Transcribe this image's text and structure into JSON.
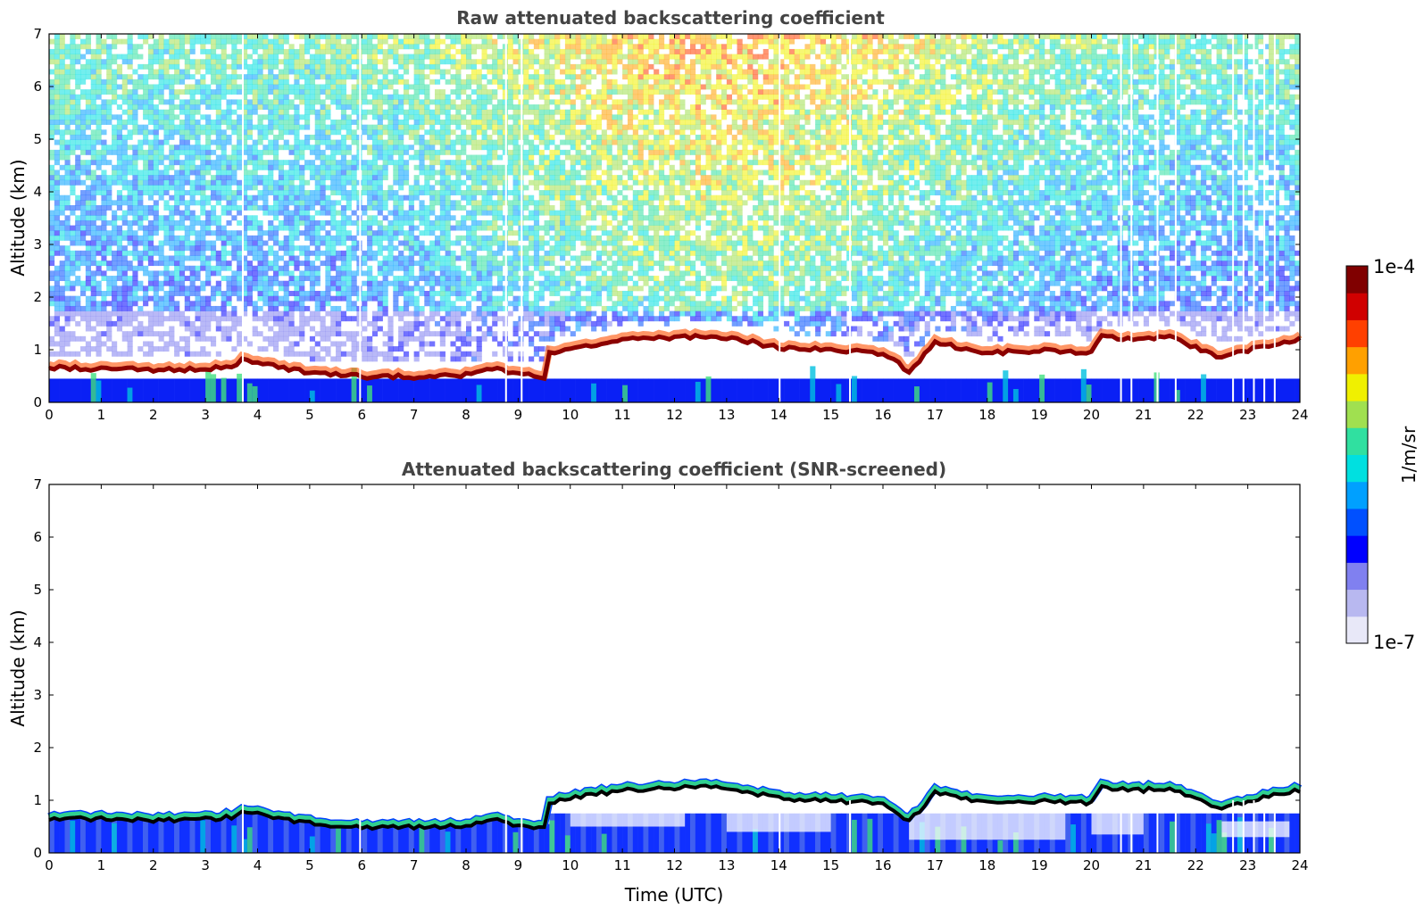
{
  "chart_data": [
    {
      "type": "heatmap",
      "title": "Raw attenuated backscattering coefficient",
      "xlabel": "",
      "ylabel": "Altitude (km)",
      "xlim": [
        0,
        24
      ],
      "ylim": [
        0,
        7
      ],
      "xticks": [
        "0",
        "1",
        "2",
        "3",
        "4",
        "5",
        "6",
        "7",
        "8",
        "9",
        "10",
        "11",
        "12",
        "13",
        "14",
        "15",
        "16",
        "17",
        "18",
        "19",
        "20",
        "21",
        "22",
        "23",
        "24"
      ],
      "yticks": [
        "0",
        "1",
        "2",
        "3",
        "4",
        "5",
        "6",
        "7"
      ],
      "screened": false,
      "layer_top_km": [
        [
          0,
          0.72
        ],
        [
          1,
          0.7
        ],
        [
          2,
          0.68
        ],
        [
          3,
          0.7
        ],
        [
          3.6,
          0.75
        ],
        [
          3.7,
          0.88
        ],
        [
          4,
          0.8
        ],
        [
          5,
          0.62
        ],
        [
          6,
          0.55
        ],
        [
          7,
          0.55
        ],
        [
          8,
          0.58
        ],
        [
          8.5,
          0.7
        ],
        [
          9,
          0.58
        ],
        [
          9.5,
          0.55
        ],
        [
          9.6,
          1.0
        ],
        [
          10,
          1.1
        ],
        [
          11,
          1.25
        ],
        [
          12,
          1.3
        ],
        [
          13,
          1.3
        ],
        [
          14,
          1.1
        ],
        [
          15,
          1.05
        ],
        [
          16,
          1.0
        ],
        [
          16.5,
          0.65
        ],
        [
          17,
          1.2
        ],
        [
          18,
          1.0
        ],
        [
          19,
          1.05
        ],
        [
          20,
          1.0
        ],
        [
          20.2,
          1.3
        ],
        [
          21,
          1.25
        ],
        [
          21.5,
          1.3
        ],
        [
          22,
          1.1
        ],
        [
          22.5,
          0.9
        ],
        [
          23,
          1.05
        ],
        [
          23.5,
          1.15
        ],
        [
          24,
          1.25
        ]
      ],
      "gap_times_h": [
        3.7,
        5.95,
        8.75,
        9.05,
        14.0,
        15.35,
        20.55,
        20.75,
        21.25,
        21.6,
        22.7,
        22.9,
        23.1,
        23.3,
        23.5
      ]
    },
    {
      "type": "heatmap",
      "title": "Attenuated backscattering coefficient (SNR-screened)",
      "xlabel": "Time (UTC)",
      "ylabel": "Altitude (km)",
      "xlim": [
        0,
        24
      ],
      "ylim": [
        0,
        7
      ],
      "xticks": [
        "0",
        "1",
        "2",
        "3",
        "4",
        "5",
        "6",
        "7",
        "8",
        "9",
        "10",
        "11",
        "12",
        "13",
        "14",
        "15",
        "16",
        "17",
        "18",
        "19",
        "20",
        "21",
        "22",
        "23",
        "24"
      ],
      "yticks": [
        "0",
        "1",
        "2",
        "3",
        "4",
        "5",
        "6",
        "7"
      ],
      "screened": true
    }
  ],
  "colorbar": {
    "label": "1/m/sr",
    "max_label": "1e-4",
    "min_label": "1e-7",
    "colors": [
      "#e8e8f8",
      "#b8b8f0",
      "#8080f0",
      "#0000ff",
      "#0050ff",
      "#00a0ff",
      "#00e0e0",
      "#30e0a0",
      "#a0e050",
      "#f0f000",
      "#ffa000",
      "#ff4000",
      "#d00000",
      "#800000"
    ]
  }
}
